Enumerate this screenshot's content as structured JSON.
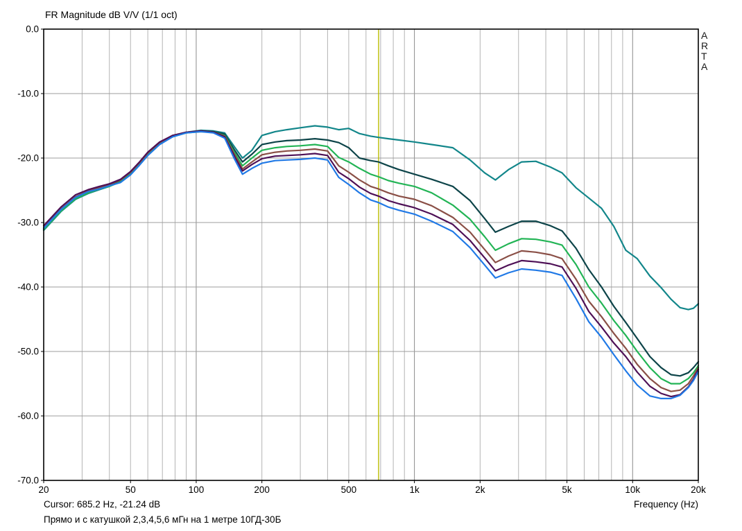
{
  "header": {
    "title": "FR Magnitude dB V/V (1/1 oct)",
    "brand_vertical": "ARTA"
  },
  "statusbar": {
    "cursor_readout": "Cursor: 685.2 Hz, -21.24 dB",
    "caption": "Прямо и с катушкой 2,3,4,5,6 мГн на 1 метре 10ГД-30Б",
    "x_axis_label": "Frequency (Hz)"
  },
  "colors": {
    "frame": "#000000",
    "grid_minor": "#b3b3b3",
    "grid_decade": "#8a8a8a",
    "grid_horizontal": "#9c9c9c",
    "cursor_line": "#b9bc00",
    "background": "#ffffff"
  },
  "chart_data": {
    "type": "line",
    "title": "FR Magnitude dB V/V (1/1 oct)",
    "xlabel": "Frequency (Hz)",
    "ylabel": "dB",
    "xscale": "log",
    "xlim": [
      20,
      20000
    ],
    "ylim": [
      -70,
      0
    ],
    "grid": true,
    "legend_position": "none",
    "cursor": {
      "freq_hz": 685.2,
      "value_db": -21.24
    },
    "x_ticks": [
      {
        "value": 20,
        "label": "20"
      },
      {
        "value": 50,
        "label": "50"
      },
      {
        "value": 100,
        "label": "100"
      },
      {
        "value": 200,
        "label": "200"
      },
      {
        "value": 500,
        "label": "500"
      },
      {
        "value": 1000,
        "label": "1k"
      },
      {
        "value": 2000,
        "label": "2k"
      },
      {
        "value": 5000,
        "label": "5k"
      },
      {
        "value": 10000,
        "label": "10k"
      },
      {
        "value": 20000,
        "label": "20k"
      }
    ],
    "y_ticks": [
      {
        "value": 0,
        "label": "0.0"
      },
      {
        "value": -10,
        "label": "-10.0"
      },
      {
        "value": -20,
        "label": "-20.0"
      },
      {
        "value": -30,
        "label": "-30.0"
      },
      {
        "value": -40,
        "label": "-40.0"
      },
      {
        "value": -50,
        "label": "-50.0"
      },
      {
        "value": -60,
        "label": "-60.0"
      },
      {
        "value": -70,
        "label": "-70.0"
      }
    ],
    "x": [
      20,
      24,
      28,
      32,
      36,
      40,
      45,
      50,
      55,
      60,
      68,
      78,
      90,
      105,
      120,
      135,
      150,
      163,
      180,
      200,
      230,
      260,
      300,
      350,
      400,
      450,
      500,
      560,
      630,
      685,
      760,
      850,
      1000,
      1200,
      1500,
      1800,
      2100,
      2350,
      2700,
      3100,
      3600,
      4200,
      4750,
      5500,
      6300,
      7200,
      8200,
      9300,
      10500,
      12000,
      13500,
      15000,
      16500,
      18000,
      19000,
      20000
    ],
    "series": [
      {
        "name": "прямо (без катушки)",
        "color": "#12868a",
        "values": [
          -31.2,
          -28.3,
          -26.4,
          -25.5,
          -24.9,
          -24.4,
          -23.6,
          -22.4,
          -20.9,
          -19.4,
          -17.7,
          -16.6,
          -16.0,
          -15.7,
          -15.8,
          -16.1,
          -18.3,
          -20.0,
          -18.8,
          -16.5,
          -15.9,
          -15.6,
          -15.3,
          -15.0,
          -15.2,
          -15.6,
          -15.4,
          -16.2,
          -16.6,
          -16.8,
          -17.0,
          -17.2,
          -17.5,
          -17.9,
          -18.4,
          -20.3,
          -22.3,
          -23.4,
          -21.8,
          -20.6,
          -20.5,
          -21.4,
          -22.3,
          -24.6,
          -26.2,
          -27.8,
          -30.6,
          -34.3,
          -35.6,
          -38.3,
          -40.1,
          -41.9,
          -43.2,
          -43.5,
          -43.3,
          -42.6
        ]
      },
      {
        "name": "катушка 2 мГн",
        "color": "#0d4449",
        "values": [
          -31.0,
          -28.1,
          -26.2,
          -25.2,
          -24.7,
          -24.2,
          -23.5,
          -22.3,
          -20.8,
          -19.3,
          -17.6,
          -16.5,
          -16.0,
          -15.8,
          -15.9,
          -16.3,
          -18.8,
          -20.6,
          -19.4,
          -17.9,
          -17.5,
          -17.3,
          -17.2,
          -17.0,
          -17.2,
          -17.6,
          -18.4,
          -20.0,
          -20.4,
          -20.6,
          -21.2,
          -21.8,
          -22.5,
          -23.3,
          -24.4,
          -26.6,
          -29.4,
          -31.5,
          -30.6,
          -29.8,
          -29.8,
          -30.5,
          -31.3,
          -34.0,
          -37.3,
          -40.0,
          -43.0,
          -45.5,
          -48.0,
          -50.8,
          -52.5,
          -53.6,
          -53.8,
          -53.3,
          -52.5,
          -51.6
        ]
      },
      {
        "name": "катушка 3 мГн",
        "color": "#22b455",
        "values": [
          -31.1,
          -28.2,
          -26.3,
          -25.4,
          -24.8,
          -24.4,
          -23.7,
          -22.5,
          -21.0,
          -19.5,
          -17.8,
          -16.7,
          -16.1,
          -15.9,
          -16.0,
          -16.5,
          -19.2,
          -21.2,
          -20.0,
          -18.8,
          -18.4,
          -18.2,
          -18.1,
          -17.9,
          -18.2,
          -19.9,
          -20.6,
          -21.6,
          -22.5,
          -22.9,
          -23.5,
          -23.9,
          -24.4,
          -25.4,
          -27.3,
          -29.5,
          -32.2,
          -34.3,
          -33.3,
          -32.5,
          -32.6,
          -33.0,
          -33.5,
          -36.5,
          -40.0,
          -42.5,
          -45.2,
          -47.5,
          -50.0,
          -52.5,
          -54.2,
          -55.0,
          -55.0,
          -54.2,
          -53.3,
          -52.2
        ]
      },
      {
        "name": "катушка 4 мГн",
        "color": "#8a4f46",
        "values": [
          -30.8,
          -27.9,
          -26.0,
          -25.1,
          -24.6,
          -24.1,
          -23.4,
          -22.2,
          -20.7,
          -19.2,
          -17.6,
          -16.5,
          -16.0,
          -15.8,
          -16.0,
          -16.6,
          -19.5,
          -21.7,
          -20.6,
          -19.5,
          -19.1,
          -18.9,
          -18.8,
          -18.6,
          -18.9,
          -21.2,
          -22.2,
          -23.4,
          -24.4,
          -24.8,
          -25.4,
          -25.9,
          -26.4,
          -27.4,
          -29.2,
          -31.5,
          -34.2,
          -36.2,
          -35.2,
          -34.4,
          -34.6,
          -35.0,
          -35.6,
          -38.8,
          -42.2,
          -44.6,
          -47.2,
          -49.5,
          -52.0,
          -54.2,
          -55.6,
          -56.2,
          -56.0,
          -55.0,
          -53.8,
          -52.5
        ]
      },
      {
        "name": "катушка 5 мГн",
        "color": "#4e1056",
        "values": [
          -30.5,
          -27.6,
          -25.7,
          -24.9,
          -24.4,
          -24.0,
          -23.3,
          -22.1,
          -20.6,
          -19.1,
          -17.5,
          -16.5,
          -16.0,
          -15.8,
          -16.0,
          -16.7,
          -19.8,
          -22.0,
          -21.0,
          -20.1,
          -19.7,
          -19.6,
          -19.5,
          -19.3,
          -19.6,
          -22.2,
          -23.2,
          -24.5,
          -25.5,
          -25.9,
          -26.6,
          -27.1,
          -27.7,
          -28.7,
          -30.3,
          -32.8,
          -35.5,
          -37.5,
          -36.6,
          -35.9,
          -36.1,
          -36.4,
          -36.9,
          -40.2,
          -43.8,
          -46.2,
          -48.7,
          -50.8,
          -53.2,
          -55.4,
          -56.5,
          -57.0,
          -56.7,
          -55.5,
          -54.3,
          -52.8
        ]
      },
      {
        "name": "катушка 6 мГн",
        "color": "#2079e6",
        "values": [
          -30.9,
          -28.0,
          -26.1,
          -25.2,
          -24.8,
          -24.3,
          -23.8,
          -22.6,
          -21.1,
          -19.6,
          -17.9,
          -16.7,
          -16.1,
          -15.9,
          -16.1,
          -16.9,
          -20.2,
          -22.5,
          -21.6,
          -20.8,
          -20.4,
          -20.3,
          -20.2,
          -20.0,
          -20.3,
          -23.0,
          -24.1,
          -25.4,
          -26.5,
          -26.9,
          -27.6,
          -28.1,
          -28.7,
          -29.8,
          -31.4,
          -33.9,
          -36.6,
          -38.6,
          -37.8,
          -37.2,
          -37.4,
          -37.7,
          -38.2,
          -41.8,
          -45.4,
          -47.8,
          -50.5,
          -53.0,
          -55.2,
          -56.9,
          -57.3,
          -57.3,
          -56.8,
          -55.6,
          -54.5,
          -53.1
        ]
      }
    ]
  }
}
